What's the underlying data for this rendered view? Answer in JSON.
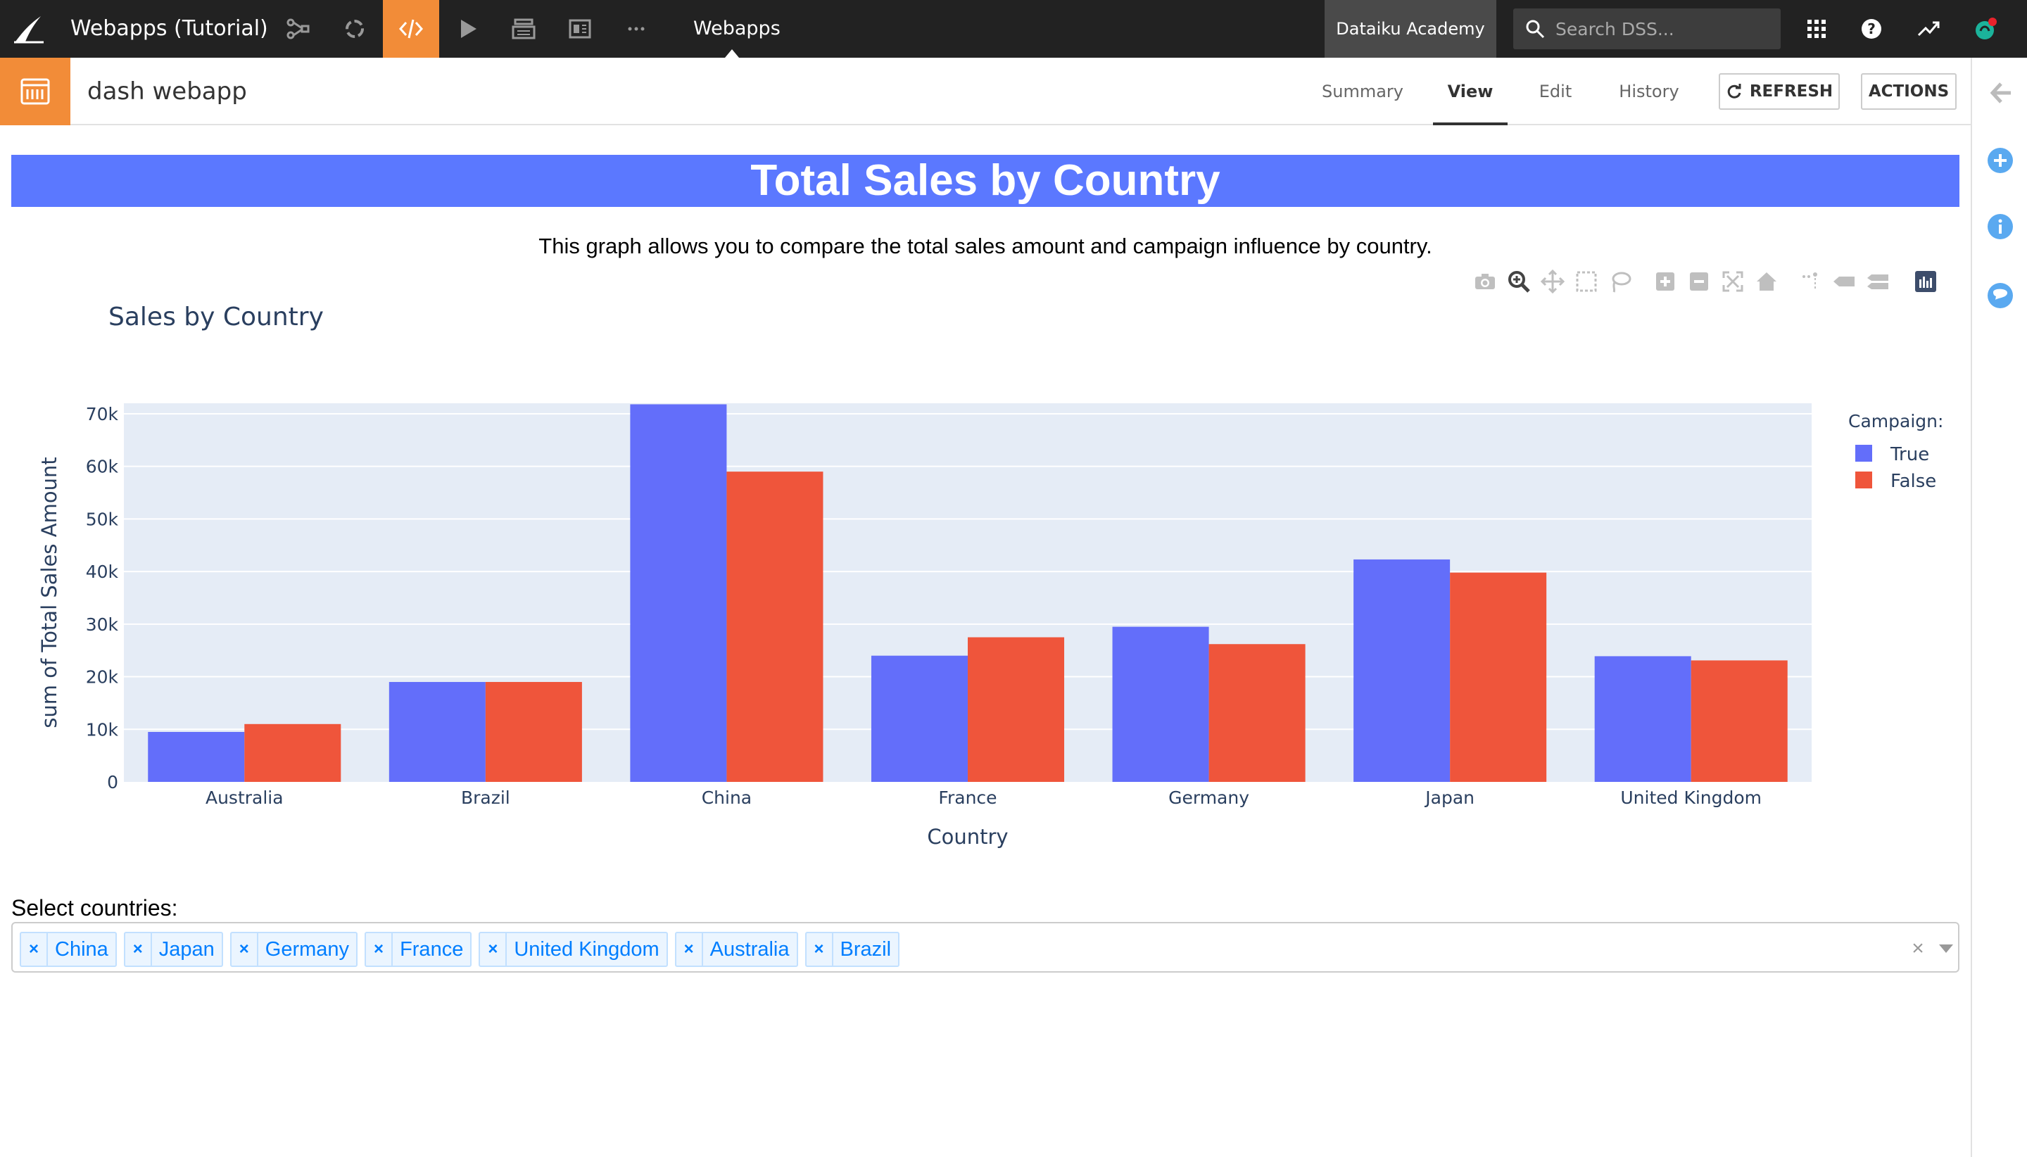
{
  "topbar": {
    "project_title": "Webapps (Tutorial)",
    "section_title": "Webapps",
    "academy_label": "Dataiku Academy",
    "search_placeholder": "Search DSS...",
    "nav_icons": [
      "flow-icon",
      "recycle-icon",
      "code-icon",
      "play-icon",
      "stack-icon",
      "dashboard-icon",
      "more-icon"
    ],
    "active_color": "#f28c38"
  },
  "subbar": {
    "webapp_name": "dash webapp",
    "tabs": [
      {
        "label": "Summary"
      },
      {
        "label": "View"
      },
      {
        "label": "Edit"
      },
      {
        "label": "History"
      }
    ],
    "active_tab": "View",
    "refresh_label": "REFRESH",
    "actions_label": "ACTIONS"
  },
  "content": {
    "banner_title": "Total Sales by Country",
    "banner_color": "#5b78ff",
    "subtitle": "This graph allows you to compare the total sales amount and campaign influence by country.",
    "select_label": "Select countries:",
    "selected_countries": [
      "China",
      "Japan",
      "Germany",
      "France",
      "United Kingdom",
      "Australia",
      "Brazil"
    ],
    "clear_glyph": "×",
    "chip_remove_glyph": "×"
  },
  "chart_data": {
    "type": "bar",
    "title": "Sales by Country",
    "xlabel": "Country",
    "ylabel": "sum of Total Sales Amount",
    "categories": [
      "Australia",
      "Brazil",
      "China",
      "France",
      "Germany",
      "Japan",
      "United Kingdom"
    ],
    "legend_title": "Campaign:",
    "legend_position": "top-right",
    "series": [
      {
        "name": "True",
        "color": "#636efa",
        "values": [
          9500,
          19000,
          71800,
          24000,
          29500,
          42300,
          23900
        ]
      },
      {
        "name": "False",
        "color": "#ef553b",
        "values": [
          11000,
          19000,
          59000,
          27500,
          26200,
          39800,
          23100
        ]
      }
    ],
    "ylim": [
      0,
      72000
    ],
    "yticks": [
      0,
      10000,
      20000,
      30000,
      40000,
      50000,
      60000,
      70000
    ],
    "ytick_labels": [
      "0",
      "10k",
      "20k",
      "30k",
      "40k",
      "50k",
      "60k",
      "70k"
    ],
    "grid": true,
    "plot_bg": "#e5ecf6"
  }
}
